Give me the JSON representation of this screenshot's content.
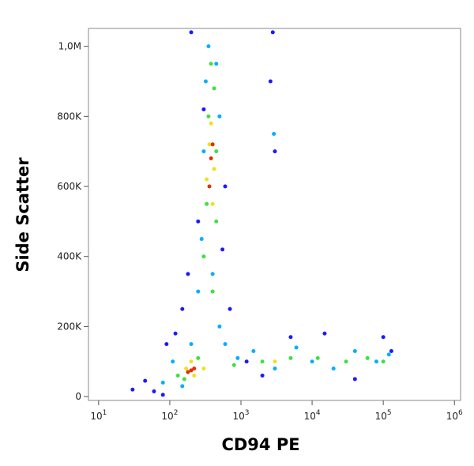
{
  "chart_data": {
    "type": "scatter",
    "x_label": "CD94 PE",
    "y_label": "Side Scatter",
    "xscale": "log",
    "xlim": [
      7.2,
      1220000
    ],
    "ylim": [
      -11000,
      1051000
    ],
    "xticks": [
      {
        "value": 10,
        "label": "10",
        "exponent": "1"
      },
      {
        "value": 100,
        "label": "10",
        "exponent": "2"
      },
      {
        "value": 1000,
        "label": "10",
        "exponent": "3"
      },
      {
        "value": 10000,
        "label": "10",
        "exponent": "4"
      },
      {
        "value": 100000,
        "label": "10",
        "exponent": "5"
      },
      {
        "value": 1000000,
        "label": "10",
        "exponent": "6"
      }
    ],
    "yticks": [
      0,
      {
        "value": 200000,
        "label": "200K"
      },
      {
        "value": 400000,
        "label": "400K"
      },
      {
        "value": 600000,
        "label": "600K"
      },
      {
        "value": 800000,
        "label": "800K"
      },
      {
        "value": 1000000,
        "label": "1,0M"
      }
    ],
    "series": [
      {
        "color": "#1a1aff",
        "x": [
          30,
          45,
          60,
          90,
          120,
          150,
          180,
          250,
          300,
          600,
          700,
          1200,
          2000,
          2600,
          3000,
          2800,
          5000,
          15000,
          40000,
          100000,
          130000,
          550,
          200,
          80
        ],
        "values": [
          20000,
          45000,
          15000,
          150000,
          180000,
          250000,
          350000,
          500000,
          820000,
          600000,
          250000,
          100000,
          60000,
          900000,
          700000,
          1040000,
          170000,
          180000,
          50000,
          170000,
          130000,
          420000,
          1040000,
          5000
        ]
      },
      {
        "color": "#00b0ff",
        "x": [
          80,
          110,
          150,
          200,
          250,
          280,
          300,
          320,
          350,
          500,
          600,
          900,
          1500,
          3000,
          6000,
          10000,
          20000,
          40000,
          80000,
          120000,
          450,
          500,
          400,
          2900
        ],
        "values": [
          40000,
          100000,
          30000,
          150000,
          300000,
          450000,
          700000,
          900000,
          1000000,
          200000,
          150000,
          110000,
          130000,
          80000,
          140000,
          100000,
          80000,
          130000,
          100000,
          120000,
          950000,
          800000,
          350000,
          750000
        ]
      },
      {
        "color": "#40e040",
        "x": [
          130,
          160,
          250,
          300,
          330,
          350,
          380,
          450,
          450,
          800,
          2000,
          5000,
          12000,
          30000,
          60000,
          100000,
          400,
          420
        ],
        "values": [
          60000,
          50000,
          110000,
          400000,
          550000,
          800000,
          950000,
          700000,
          500000,
          90000,
          100000,
          110000,
          110000,
          100000,
          110000,
          100000,
          300000,
          880000
        ]
      },
      {
        "color": "#f0e020",
        "x": [
          170,
          220,
          330,
          380,
          420,
          400,
          300,
          360,
          3000,
          200
        ],
        "values": [
          80000,
          60000,
          620000,
          780000,
          650000,
          550000,
          80000,
          720000,
          100000,
          100000
        ]
      },
      {
        "color": "#e03000",
        "x": [
          180,
          200,
          220,
          380,
          360,
          400
        ],
        "values": [
          70000,
          75000,
          80000,
          680000,
          600000,
          720000
        ]
      }
    ]
  }
}
